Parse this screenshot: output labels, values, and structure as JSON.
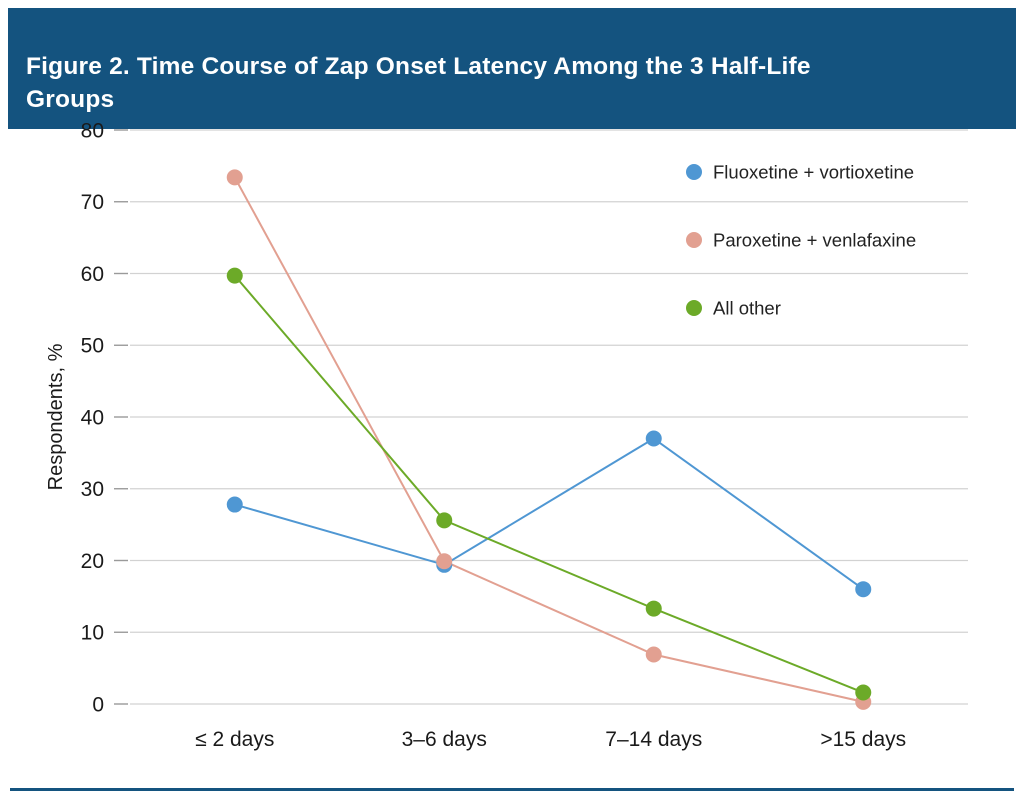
{
  "figure": {
    "title": "Figure 2. Time Course of Zap Onset Latency Among the 3 Half-Life\nGroups"
  },
  "chart_data": {
    "type": "line",
    "title": "Figure 2. Time Course of Zap Onset Latency Among the 3 Half-Life Groups",
    "categories": [
      "≤ 2 days",
      "3–6 days",
      "7–14 days",
      ">15 days"
    ],
    "series": [
      {
        "name": "Fluoxetine + vortioxetine",
        "color": "#4f97d3",
        "values": [
          27.8,
          19.4,
          37.0,
          16.0
        ]
      },
      {
        "name": "Paroxetine + venlafaxine",
        "color": "#e2a091",
        "values": [
          73.4,
          19.9,
          6.9,
          0.3
        ]
      },
      {
        "name": "All other",
        "color": "#6caa28",
        "values": [
          59.7,
          25.6,
          13.3,
          1.6
        ]
      }
    ],
    "xlabel": "",
    "ylabel": "Respondents, %",
    "ylim": [
      0,
      80
    ],
    "yticks": [
      0,
      10,
      20,
      30,
      40,
      50,
      60,
      70,
      80
    ],
    "grid": true,
    "legend_position": "top-right"
  },
  "colors": {
    "header_bg": "#14537f",
    "divider": "#14537f",
    "grid_line": "#d2d2d2",
    "tick_mark": "#9a9a9a",
    "tick_text": "#1a1a1a",
    "legend_text": "#222222"
  }
}
